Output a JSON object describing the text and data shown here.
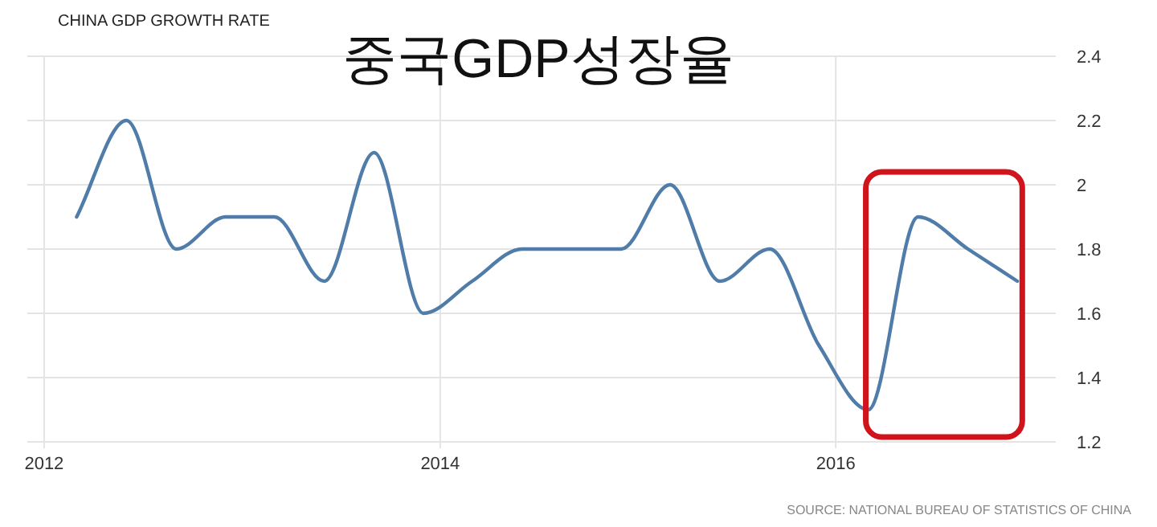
{
  "chart_data": {
    "type": "line",
    "title": "CHINA GDP GROWTH RATE",
    "subtitle": "중국GDP성장율",
    "annotations": [
      "SOURCE: NATIONAL BUREAU OF STATISTICS OF CHINA"
    ],
    "x": [
      "2012-03",
      "2012-06",
      "2012-09",
      "2012-12",
      "2013-03",
      "2013-06",
      "2013-09",
      "2013-12",
      "2014-03",
      "2014-06",
      "2014-09",
      "2014-12",
      "2015-03",
      "2015-06",
      "2015-09",
      "2015-12",
      "2016-03",
      "2016-06",
      "2016-09",
      "2016-12"
    ],
    "series": [
      {
        "color": "#4f7ca8",
        "values": [
          1.9,
          2.2,
          1.8,
          1.9,
          1.9,
          1.7,
          2.1,
          1.6,
          1.7,
          1.8,
          1.8,
          1.8,
          2.0,
          1.7,
          1.8,
          1.5,
          1.3,
          1.9,
          1.8,
          1.7
        ]
      }
    ],
    "xlim": [
      "2011-12-01",
      "2017-02-10"
    ],
    "xticks": [
      "2012",
      "2014",
      "2016"
    ],
    "ylim": [
      1.2,
      2.4
    ],
    "yticks": [
      1.2,
      1.4,
      1.6,
      1.8,
      2,
      2.2,
      2.4
    ],
    "grid": true
  }
}
